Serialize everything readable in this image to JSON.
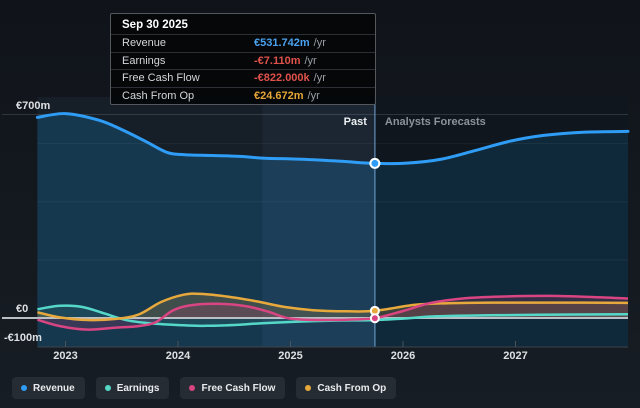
{
  "tooltip": {
    "date": "Sep 30 2025",
    "rows": [
      {
        "label": "Revenue",
        "value": "€531.742m",
        "unit": "/yr",
        "color": "#4aa2f0"
      },
      {
        "label": "Earnings",
        "value": "-€7.110m",
        "unit": "/yr",
        "color": "#e0524a"
      },
      {
        "label": "Free Cash Flow",
        "value": "-€822.000k",
        "unit": "/yr",
        "color": "#e0524a"
      },
      {
        "label": "Cash From Op",
        "value": "€24.672m",
        "unit": "/yr",
        "color": "#e6a637"
      }
    ]
  },
  "axis": {
    "y_ticks": [
      {
        "label": "€700m",
        "value": 700
      },
      {
        "label": "€0",
        "value": 0
      },
      {
        "label": "-€100m",
        "value": -100
      }
    ],
    "x_ticks": [
      {
        "label": "2023",
        "year": 2023
      },
      {
        "label": "2024",
        "year": 2024
      },
      {
        "label": "2025",
        "year": 2025
      },
      {
        "label": "2026",
        "year": 2026
      },
      {
        "label": "2027",
        "year": 2027
      }
    ]
  },
  "annotations": {
    "past_label": "Past",
    "forecast_label": "Analysts Forecasts"
  },
  "legend": [
    {
      "label": "Revenue",
      "color": "#2f9df5"
    },
    {
      "label": "Earnings",
      "color": "#55d8c8"
    },
    {
      "label": "Free Cash Flow",
      "color": "#d84582"
    },
    {
      "label": "Cash From Op",
      "color": "#e8a93c"
    }
  ],
  "chart_data": {
    "type": "area",
    "title": "Earnings and revenue history with analyst forecasts",
    "x_unit": "year",
    "y_unit": "EUR millions per year",
    "xlim": [
      2022.75,
      2028
    ],
    "ylim": [
      -100,
      700
    ],
    "grid_values": [
      600,
      400,
      200
    ],
    "divider_x": 2025.75,
    "highlight_band": [
      2024.75,
      2025.75
    ],
    "series": [
      {
        "name": "Revenue",
        "color": "#2f9df5",
        "points": [
          [
            2022.75,
            690
          ],
          [
            2023.0,
            703
          ],
          [
            2023.3,
            680
          ],
          [
            2023.5,
            648
          ],
          [
            2023.7,
            610
          ],
          [
            2023.9,
            570
          ],
          [
            2024.05,
            562
          ],
          [
            2024.3,
            559
          ],
          [
            2024.55,
            556
          ],
          [
            2024.75,
            550
          ],
          [
            2025.1,
            546
          ],
          [
            2025.45,
            539
          ],
          [
            2025.75,
            531.742
          ],
          [
            2026.05,
            533
          ],
          [
            2026.35,
            547
          ],
          [
            2026.65,
            577
          ],
          [
            2026.95,
            608
          ],
          [
            2027.25,
            628
          ],
          [
            2027.6,
            639
          ],
          [
            2028.0,
            642
          ]
        ]
      },
      {
        "name": "Earnings",
        "color": "#55d8c8",
        "points": [
          [
            2022.75,
            30
          ],
          [
            2022.95,
            42
          ],
          [
            2023.15,
            38
          ],
          [
            2023.35,
            15
          ],
          [
            2023.55,
            -8
          ],
          [
            2023.8,
            -20
          ],
          [
            2024.05,
            -25
          ],
          [
            2024.25,
            -27
          ],
          [
            2024.5,
            -24
          ],
          [
            2024.75,
            -18
          ],
          [
            2025.1,
            -12
          ],
          [
            2025.4,
            -9
          ],
          [
            2025.75,
            -7.11
          ],
          [
            2026.0,
            -2
          ],
          [
            2026.3,
            6
          ],
          [
            2026.7,
            9
          ],
          [
            2027.2,
            11
          ],
          [
            2028.0,
            13
          ]
        ]
      },
      {
        "name": "Free Cash Flow",
        "color": "#d84582",
        "points": [
          [
            2022.75,
            -6
          ],
          [
            2022.95,
            -28
          ],
          [
            2023.2,
            -40
          ],
          [
            2023.45,
            -33
          ],
          [
            2023.65,
            -28
          ],
          [
            2023.8,
            -15
          ],
          [
            2023.95,
            25
          ],
          [
            2024.1,
            43
          ],
          [
            2024.35,
            49
          ],
          [
            2024.6,
            41
          ],
          [
            2024.8,
            22
          ],
          [
            2025.0,
            -2
          ],
          [
            2025.3,
            -7
          ],
          [
            2025.55,
            -5
          ],
          [
            2025.75,
            -0.822
          ],
          [
            2026.0,
            24
          ],
          [
            2026.25,
            52
          ],
          [
            2026.55,
            68
          ],
          [
            2026.9,
            74
          ],
          [
            2027.3,
            76
          ],
          [
            2027.7,
            72
          ],
          [
            2028.0,
            67
          ]
        ]
      },
      {
        "name": "Cash From Op",
        "color": "#e8a93c",
        "points": [
          [
            2022.75,
            20
          ],
          [
            2022.95,
            2
          ],
          [
            2023.2,
            -7
          ],
          [
            2023.45,
            -3
          ],
          [
            2023.65,
            12
          ],
          [
            2023.85,
            55
          ],
          [
            2024.05,
            80
          ],
          [
            2024.2,
            83
          ],
          [
            2024.45,
            73
          ],
          [
            2024.7,
            57
          ],
          [
            2024.95,
            38
          ],
          [
            2025.2,
            27
          ],
          [
            2025.5,
            23
          ],
          [
            2025.75,
            24.672
          ],
          [
            2026.1,
            45
          ],
          [
            2026.4,
            51
          ],
          [
            2026.8,
            53
          ],
          [
            2027.3,
            53
          ],
          [
            2028.0,
            52
          ]
        ]
      }
    ],
    "markers_at_divider": {
      "Revenue": 531.742,
      "Free Cash Flow": -0.822,
      "Cash From Op": 24.672
    }
  }
}
